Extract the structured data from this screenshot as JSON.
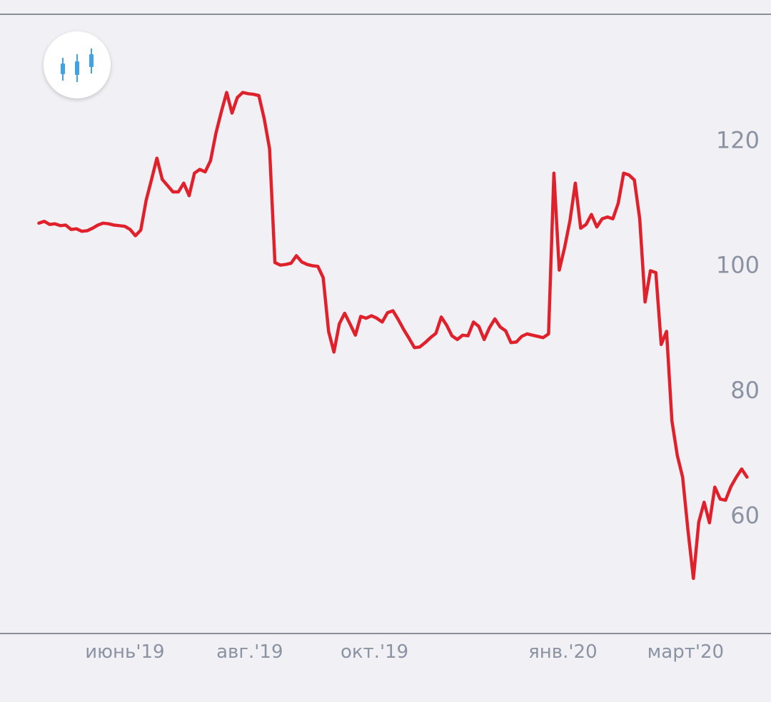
{
  "colors": {
    "background": "#f0f0f5",
    "line": "#e0212b",
    "axis_line": "#6a6d78",
    "tick_text": "#8b93a2",
    "icon": "#3fa3e6"
  },
  "icon_button": {
    "icon": "candlestick-chart-icon"
  },
  "chart_data": {
    "type": "line",
    "x_start": "2019-04-20",
    "x_end": "2020-03-31",
    "xlim": [
      "2019-04-01",
      "2020-04-03"
    ],
    "ylim": [
      41,
      140
    ],
    "yticks": [
      60,
      80,
      100,
      120
    ],
    "y_tick_labels": [
      "60",
      "80",
      "100",
      "120"
    ],
    "x_tick_labels": [
      {
        "date": "2019-06-01",
        "label": "июнь'19"
      },
      {
        "date": "2019-08-01",
        "label": "авг.'19"
      },
      {
        "date": "2019-10-01",
        "label": "окт.'19"
      },
      {
        "date": "2020-01-01",
        "label": "янв.'20"
      },
      {
        "date": "2020-03-01",
        "label": "март'20"
      }
    ],
    "grid": false,
    "series": [
      {
        "values": [
          [
            0,
            106.6
          ],
          [
            1,
            106.9
          ],
          [
            2,
            106.4
          ],
          [
            3,
            106.5
          ],
          [
            4,
            106.2
          ],
          [
            5,
            106.3
          ],
          [
            6,
            105.6
          ],
          [
            7,
            105.7
          ],
          [
            8,
            105.3
          ],
          [
            9,
            105.4
          ],
          [
            10,
            105.8
          ],
          [
            11,
            106.3
          ],
          [
            12,
            106.6
          ],
          [
            13,
            106.5
          ],
          [
            14,
            106.3
          ],
          [
            15,
            106.2
          ],
          [
            16,
            106.1
          ],
          [
            17,
            105.6
          ],
          [
            18,
            104.6
          ],
          [
            19,
            105.5
          ],
          [
            20,
            110.3
          ],
          [
            21,
            113.6
          ],
          [
            22,
            117.0
          ],
          [
            23,
            113.6
          ],
          [
            24,
            112.6
          ],
          [
            25,
            111.6
          ],
          [
            26,
            111.6
          ],
          [
            27,
            113.0
          ],
          [
            28,
            111.0
          ],
          [
            29,
            114.6
          ],
          [
            30,
            115.2
          ],
          [
            31,
            114.8
          ],
          [
            32,
            116.6
          ],
          [
            33,
            121.0
          ],
          [
            34,
            124.4
          ],
          [
            35,
            127.5
          ],
          [
            36,
            124.2
          ],
          [
            37,
            126.7
          ],
          [
            38,
            127.5
          ],
          [
            39,
            127.3
          ],
          [
            40,
            127.2
          ],
          [
            41,
            127.0
          ],
          [
            42,
            123.3
          ],
          [
            43,
            118.5
          ],
          [
            44,
            100.3
          ],
          [
            45,
            99.9
          ],
          [
            46,
            100.0
          ],
          [
            47,
            100.2
          ],
          [
            48,
            101.4
          ],
          [
            49,
            100.4
          ],
          [
            50,
            100.0
          ],
          [
            51,
            99.8
          ],
          [
            52,
            99.7
          ],
          [
            53,
            97.9
          ],
          [
            54,
            89.3
          ],
          [
            55,
            86.0
          ],
          [
            56,
            90.5
          ],
          [
            57,
            92.2
          ],
          [
            58,
            90.5
          ],
          [
            59,
            88.7
          ],
          [
            60,
            91.7
          ],
          [
            61,
            91.4
          ],
          [
            62,
            91.8
          ],
          [
            63,
            91.4
          ],
          [
            64,
            90.8
          ],
          [
            65,
            92.3
          ],
          [
            66,
            92.6
          ],
          [
            67,
            91.2
          ],
          [
            68,
            89.6
          ],
          [
            69,
            88.2
          ],
          [
            70,
            86.7
          ],
          [
            71,
            86.8
          ],
          [
            72,
            87.5
          ],
          [
            73,
            88.3
          ],
          [
            74,
            89.0
          ],
          [
            75,
            91.6
          ],
          [
            76,
            90.3
          ],
          [
            77,
            88.6
          ],
          [
            78,
            88.0
          ],
          [
            79,
            88.7
          ],
          [
            80,
            88.6
          ],
          [
            81,
            90.8
          ],
          [
            82,
            90.1
          ],
          [
            83,
            88.0
          ],
          [
            84,
            89.9
          ],
          [
            85,
            91.3
          ],
          [
            86,
            90.0
          ],
          [
            87,
            89.4
          ],
          [
            88,
            87.5
          ],
          [
            89,
            87.6
          ],
          [
            90,
            88.5
          ],
          [
            91,
            88.9
          ],
          [
            92,
            88.7
          ],
          [
            93,
            88.5
          ],
          [
            94,
            88.3
          ],
          [
            95,
            88.9
          ],
          [
            96,
            114.6
          ],
          [
            97,
            99.1
          ],
          [
            98,
            102.7
          ],
          [
            99,
            107.0
          ],
          [
            100,
            113.0
          ],
          [
            101,
            105.8
          ],
          [
            102,
            106.4
          ],
          [
            103,
            108.0
          ],
          [
            104,
            106.0
          ],
          [
            105,
            107.3
          ],
          [
            106,
            107.6
          ],
          [
            107,
            107.3
          ],
          [
            108,
            109.8
          ],
          [
            109,
            114.6
          ],
          [
            110,
            114.3
          ],
          [
            111,
            113.5
          ],
          [
            112,
            107.3
          ],
          [
            113,
            94.0
          ],
          [
            114,
            99.0
          ],
          [
            115,
            98.7
          ],
          [
            116,
            87.2
          ],
          [
            117,
            89.3
          ],
          [
            118,
            75.0
          ],
          [
            119,
            69.5
          ],
          [
            120,
            66.0
          ],
          [
            121,
            57.5
          ],
          [
            122,
            49.8
          ],
          [
            123,
            58.8
          ],
          [
            124,
            62.0
          ],
          [
            125,
            58.7
          ],
          [
            126,
            64.4
          ],
          [
            127,
            62.5
          ],
          [
            128,
            62.3
          ],
          [
            129,
            64.5
          ],
          [
            130,
            66.0
          ],
          [
            131,
            67.3
          ],
          [
            132,
            66.0
          ]
        ]
      }
    ]
  }
}
